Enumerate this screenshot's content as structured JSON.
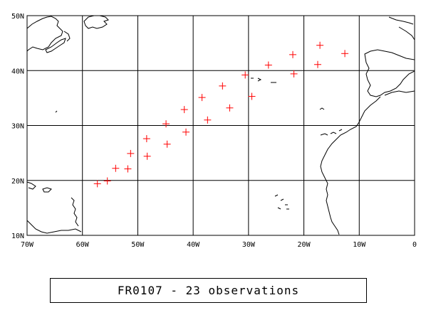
{
  "caption": "FR0107 - 23 observations",
  "colors": {
    "marker": "#ff0000",
    "grid": "#000000",
    "coast": "#000000",
    "background": "#ffffff"
  },
  "axes": {
    "lon_ticks": [
      {
        "value": -70,
        "label": "70W"
      },
      {
        "value": -60,
        "label": "60W"
      },
      {
        "value": -50,
        "label": "50W"
      },
      {
        "value": -40,
        "label": "40W"
      },
      {
        "value": -30,
        "label": "30W"
      },
      {
        "value": -20,
        "label": "20W"
      },
      {
        "value": -10,
        "label": "10W"
      },
      {
        "value": 0,
        "label": "0"
      }
    ],
    "lat_ticks": [
      {
        "value": 10,
        "label": "10N"
      },
      {
        "value": 20,
        "label": "20N"
      },
      {
        "value": 30,
        "label": "30N"
      },
      {
        "value": 40,
        "label": "40N"
      },
      {
        "value": 50,
        "label": "50N"
      }
    ]
  },
  "chart_data": {
    "type": "scatter",
    "title": "FR0107 - 23 observations",
    "xlim": [
      -70,
      0
    ],
    "ylim": [
      10,
      50
    ],
    "grid": true,
    "marker": "plus",
    "points": [
      {
        "lon": -57.3,
        "lat": 19.4
      },
      {
        "lon": -55.5,
        "lat": 19.9
      },
      {
        "lon": -54.0,
        "lat": 22.2
      },
      {
        "lon": -51.8,
        "lat": 22.1
      },
      {
        "lon": -51.3,
        "lat": 24.9
      },
      {
        "lon": -48.3,
        "lat": 24.4
      },
      {
        "lon": -48.4,
        "lat": 27.6
      },
      {
        "lon": -44.7,
        "lat": 26.6
      },
      {
        "lon": -44.9,
        "lat": 30.3
      },
      {
        "lon": -41.3,
        "lat": 28.8
      },
      {
        "lon": -41.6,
        "lat": 32.9
      },
      {
        "lon": -37.4,
        "lat": 31.0
      },
      {
        "lon": -38.4,
        "lat": 35.1
      },
      {
        "lon": -33.4,
        "lat": 33.2
      },
      {
        "lon": -34.7,
        "lat": 37.2
      },
      {
        "lon": -29.4,
        "lat": 35.3
      },
      {
        "lon": -30.6,
        "lat": 39.2
      },
      {
        "lon": -26.4,
        "lat": 41.0
      },
      {
        "lon": -21.8,
        "lat": 39.4
      },
      {
        "lon": -22.0,
        "lat": 42.9
      },
      {
        "lon": -17.5,
        "lat": 41.1
      },
      {
        "lon": -17.1,
        "lat": 44.6
      },
      {
        "lon": -12.6,
        "lat": 43.1
      }
    ]
  }
}
